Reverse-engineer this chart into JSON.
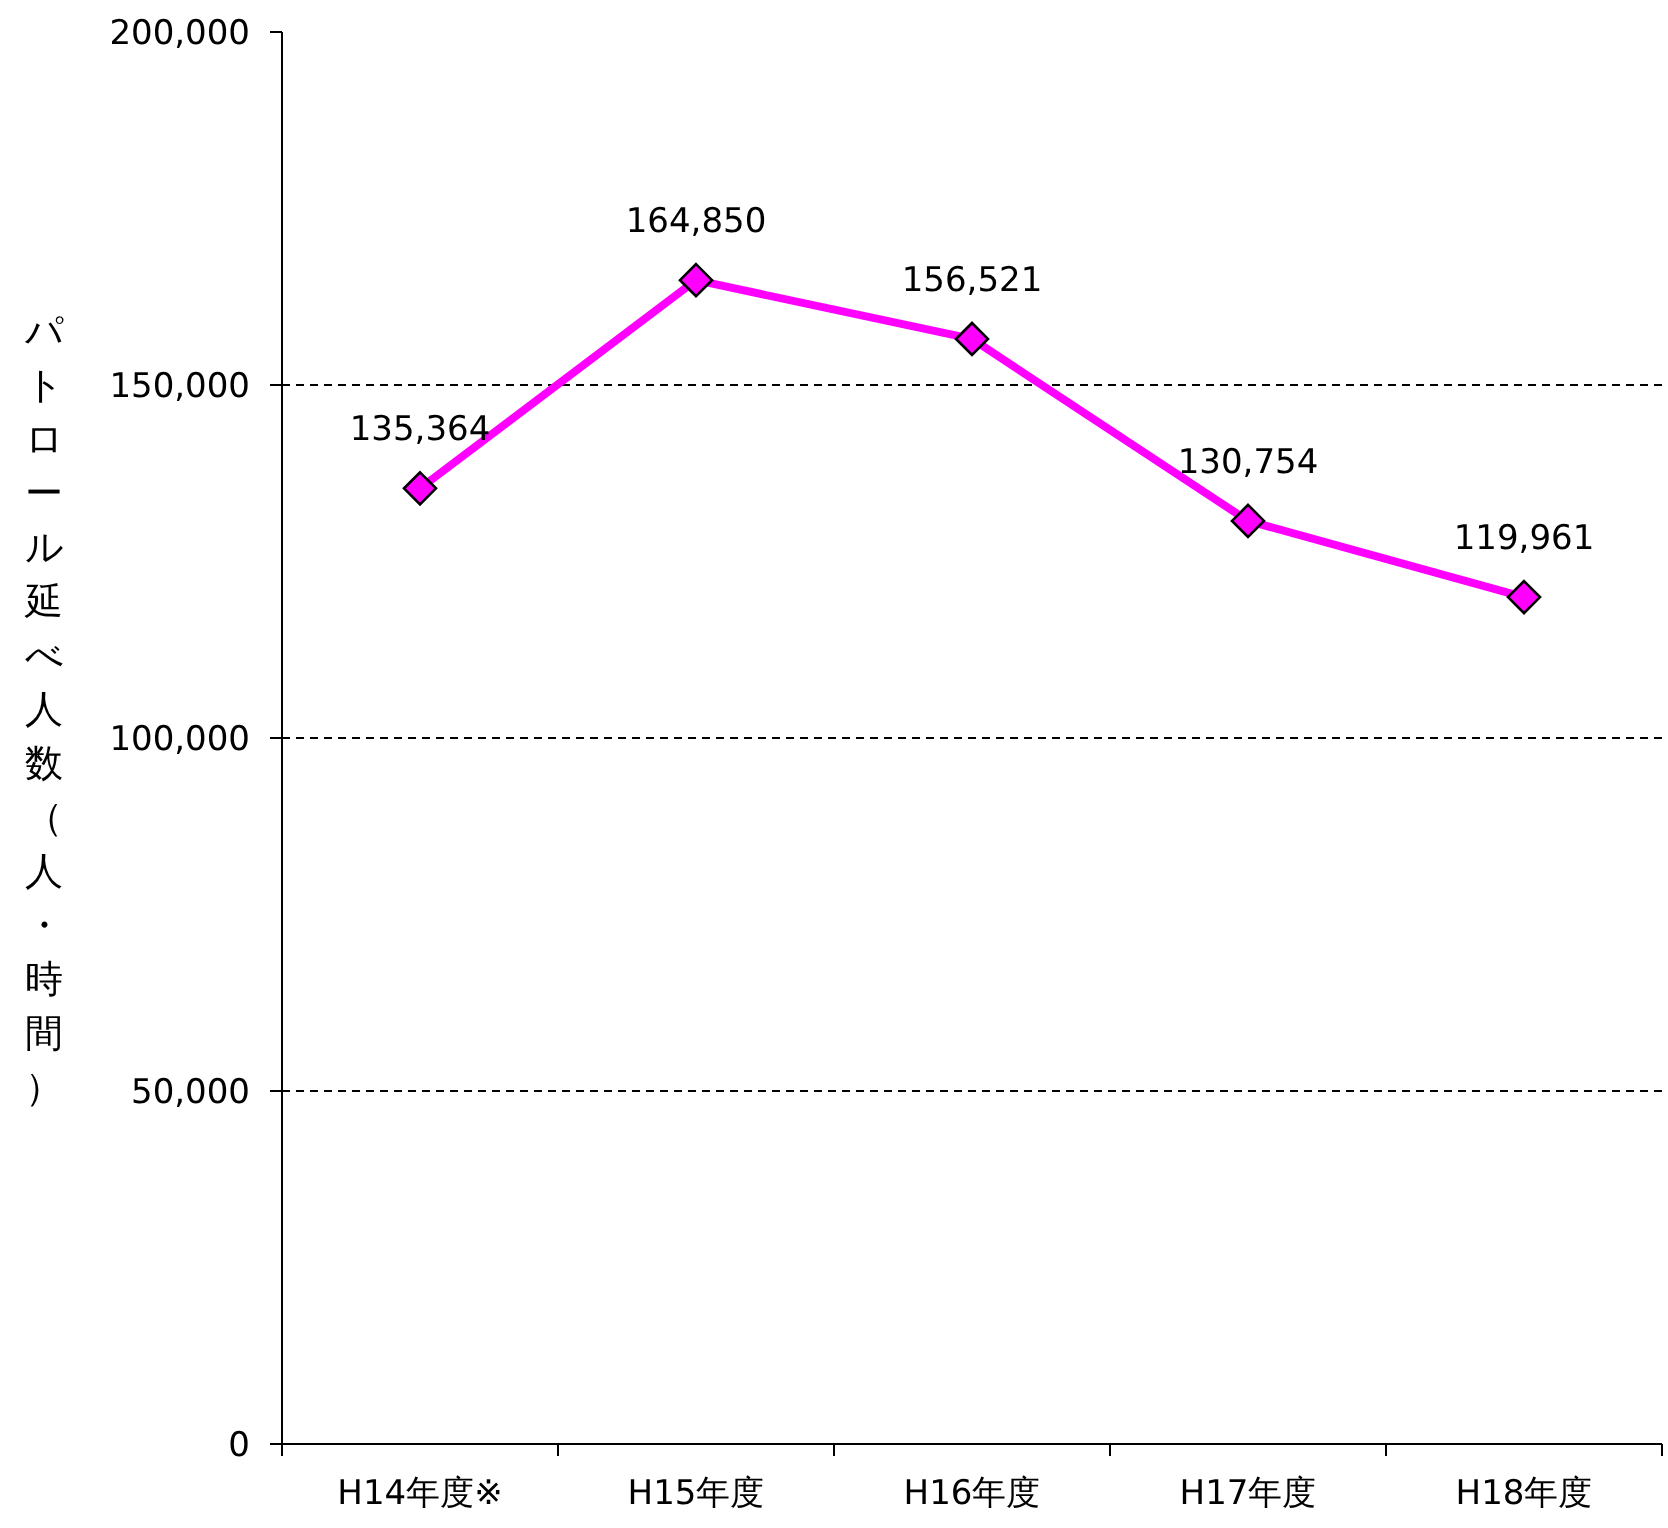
{
  "chart_data": {
    "type": "line",
    "ylabel": "パトロール延べ人数（人・時間）",
    "categories": [
      "H14年度※",
      "H15年度",
      "H16年度",
      "H17年度",
      "H18年度"
    ],
    "values": [
      135364,
      164850,
      156521,
      130754,
      119961
    ],
    "value_labels": [
      "135,364",
      "164,850",
      "156,521",
      "130,754",
      "119,961"
    ],
    "color": "#ff00ff",
    "marker": "diamond",
    "grid": "y",
    "ylim": [
      0,
      200000
    ],
    "yticks": [
      {
        "value": 0,
        "label": "0"
      },
      {
        "value": 50000,
        "label": "50,000"
      },
      {
        "value": 100000,
        "label": "100,000"
      },
      {
        "value": 150000,
        "label": "150,000"
      },
      {
        "value": 200000,
        "label": "200,000"
      }
    ]
  }
}
